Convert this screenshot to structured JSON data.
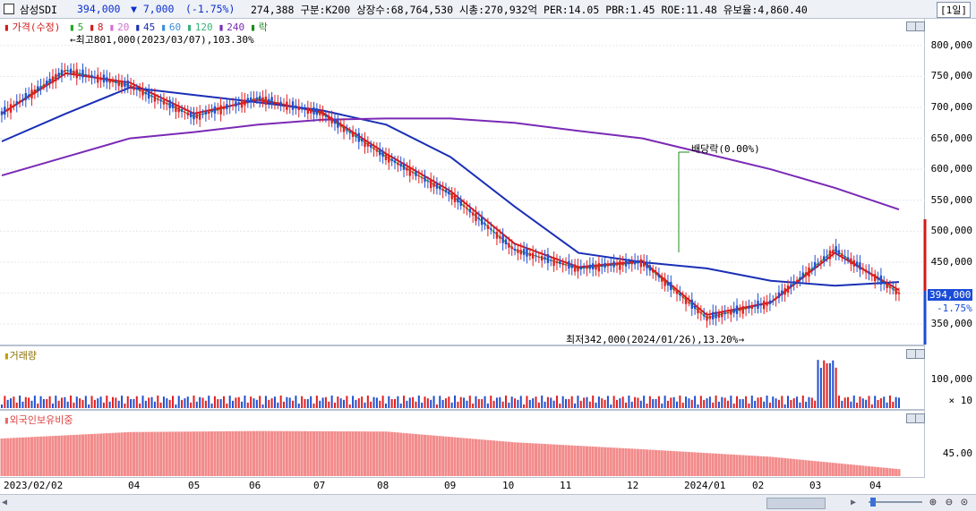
{
  "header": {
    "stock_name": "삼성SDI",
    "price": "394,000",
    "change": "▼ 7,000",
    "change_pct": "(-1.75%)",
    "info": "274,388  구분:K200 상장수:68,764,530 시총:270,932억 PER:14.05 PBR:1.45 ROE:11.48 유보율:4,860.40",
    "period": "[1일]"
  },
  "legend": {
    "price_label": "가격(수정)",
    "ma": [
      {
        "label": "5",
        "color": "#22a822"
      },
      {
        "label": "8",
        "color": "#d11a1a"
      },
      {
        "label": "20",
        "color": "#d46ed0"
      },
      {
        "label": "45",
        "color": "#1a2fb5"
      },
      {
        "label": "60",
        "color": "#3a8ed8"
      },
      {
        "label": "120",
        "color": "#3ab07a"
      },
      {
        "label": "240",
        "color": "#7a2ab5"
      },
      {
        "label": "락",
        "color": "#1e8a1e"
      }
    ]
  },
  "annotations": {
    "high": "최고801,000(2023/03/07),103.30%",
    "low": "최저342,000(2024/01/26),13.20%",
    "dividend": "배당락(0.00%)"
  },
  "price_axis": {
    "ticks": [
      "800,000",
      "750,000",
      "700,000",
      "650,000",
      "600,000",
      "550,000",
      "500,000",
      "450,000",
      "400,000",
      "350,000"
    ],
    "current": "394,000",
    "current_pct": "-1.75%"
  },
  "volume_panel": {
    "title": "거래량",
    "tick": "100,000",
    "unit": "× 10"
  },
  "foreign_panel": {
    "title": "외국인보유비중",
    "tick": "45.00"
  },
  "x_axis": {
    "labels": [
      "2023/02/02",
      "04",
      "05",
      "06",
      "07",
      "08",
      "09",
      "10",
      "11",
      "12",
      "2024/01",
      "02",
      "03",
      "04"
    ]
  },
  "chart_data": [
    {
      "type": "line",
      "title": "가격(수정)",
      "x": [
        "2023/02",
        "2023/03",
        "2023/04",
        "2023/05",
        "2023/06",
        "2023/07",
        "2023/08",
        "2023/09",
        "2023/10",
        "2023/11",
        "2023/12",
        "2024/01",
        "2024/02",
        "2024/03",
        "2024/04"
      ],
      "series": [
        {
          "name": "5",
          "values": [
            690000,
            760000,
            735000,
            685000,
            715000,
            690000,
            620000,
            560000,
            470000,
            440000,
            450000,
            360000,
            385000,
            470000,
            400000
          ]
        },
        {
          "name": "8",
          "values": [
            690000,
            755000,
            740000,
            690000,
            712000,
            692000,
            625000,
            565000,
            480000,
            442000,
            452000,
            365000,
            385000,
            465000,
            405000
          ]
        },
        {
          "name": "45",
          "values": [
            645000,
            690000,
            732000,
            720000,
            708000,
            695000,
            672000,
            620000,
            540000,
            465000,
            450000,
            440000,
            420000,
            412000,
            418000
          ]
        },
        {
          "name": "240",
          "values": [
            590000,
            620000,
            650000,
            660000,
            672000,
            680000,
            682000,
            682000,
            675000,
            662000,
            650000,
            625000,
            600000,
            570000,
            535000
          ]
        }
      ],
      "ylim": [
        330000,
        830000
      ],
      "high": 801000,
      "low": 342000,
      "last": 394000
    },
    {
      "type": "bar",
      "title": "거래량",
      "ylim": [
        0,
        180000
      ]
    },
    {
      "type": "bar",
      "title": "외국인보유비중",
      "x": [
        "2023/02",
        "2023/04",
        "2023/06",
        "2023/08",
        "2023/10",
        "2023/12",
        "2024/02",
        "2024/04"
      ],
      "values": [
        49.0,
        50.2,
        50.4,
        50.3,
        48.3,
        47.0,
        45.6,
        43.3
      ],
      "ylim": [
        42,
        52
      ]
    }
  ]
}
